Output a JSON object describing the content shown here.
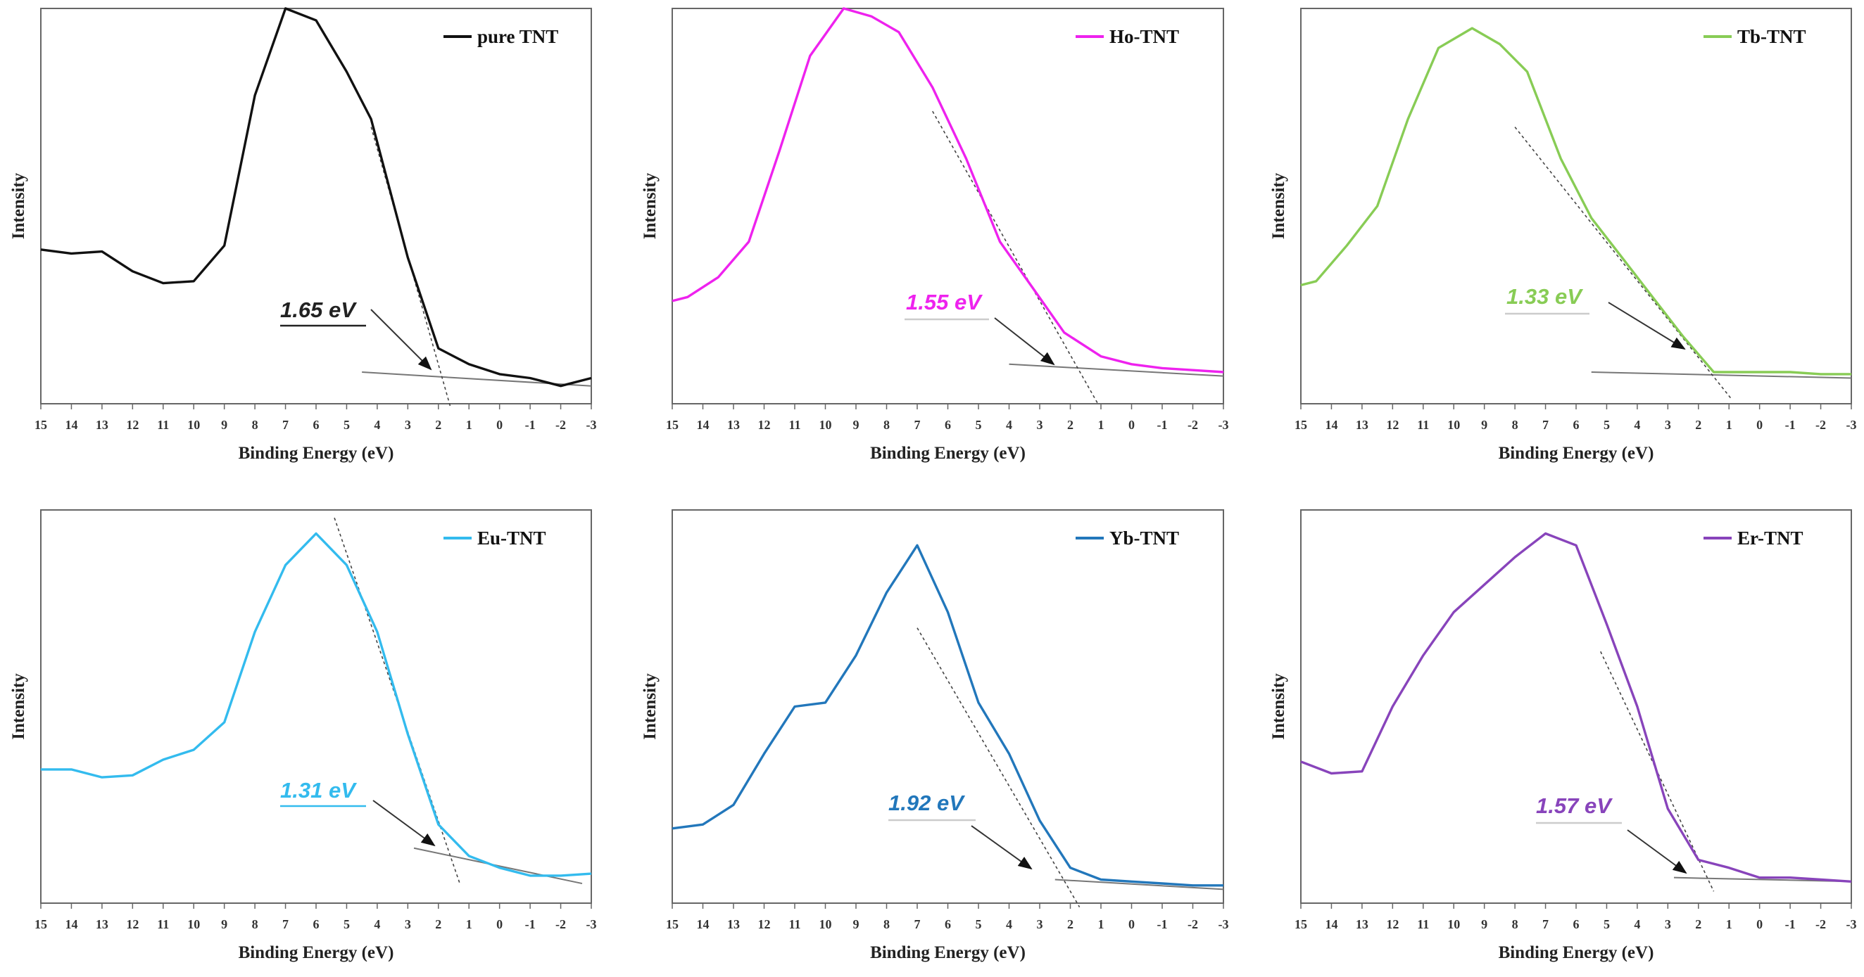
{
  "figure": {
    "x_ticks": [
      "15",
      "14",
      "13",
      "12",
      "11",
      "10",
      "9",
      "8",
      "7",
      "6",
      "5",
      "4",
      "3",
      "2",
      "1",
      "0",
      "-1",
      "-2",
      "-3"
    ],
    "xlabel": "Binding Energy (eV)",
    "ylabel": "Intensity"
  },
  "chart_data": [
    {
      "type": "line",
      "xlim": [
        15,
        -3
      ],
      "ylim": [
        0,
        100
      ],
      "xlabel": "Binding Energy (eV)",
      "ylabel": "Intensity",
      "legend": "top-right",
      "series": [
        {
          "name": "pure TNT",
          "color": "#111111",
          "x": [
            15,
            14,
            13,
            12,
            11,
            10,
            9,
            8,
            7,
            6,
            5,
            4.2,
            3,
            2,
            1,
            0,
            -1,
            -2,
            -3
          ],
          "y": [
            39,
            38,
            38.5,
            33.5,
            30.5,
            31,
            40,
            78,
            100,
            97,
            84,
            72,
            37,
            14,
            10,
            7.5,
            6.5,
            4.5,
            6.5
          ]
        }
      ],
      "tangent": {
        "x": [
          4.2,
          1.6
        ],
        "y": [
          70,
          -1
        ]
      },
      "baseline": {
        "x": [
          4.5,
          -3
        ],
        "y": [
          8,
          4.5
        ]
      },
      "annotation": {
        "text": "1.65 eV",
        "color": "#222222",
        "underline": "#222222"
      }
    },
    {
      "type": "line",
      "xlim": [
        15,
        -3
      ],
      "ylim": [
        0,
        100
      ],
      "xlabel": "Binding Energy (eV)",
      "ylabel": "Intensity",
      "legend": "top-right",
      "series": [
        {
          "name": "Ho-TNT",
          "color": "#ee22ee",
          "x": [
            15,
            14.5,
            13.5,
            12.5,
            11.5,
            10.5,
            9.4,
            8.5,
            7.6,
            6.5,
            5.4,
            4.3,
            3.2,
            2.2,
            1,
            0,
            -1,
            -2,
            -3
          ],
          "y": [
            26,
            27,
            32,
            41,
            64,
            88,
            100,
            98,
            94,
            80,
            62,
            41,
            29,
            18,
            12,
            10,
            9,
            8.5,
            8
          ]
        }
      ],
      "tangent": {
        "x": [
          6.5,
          1.1
        ],
        "y": [
          74,
          0
        ]
      },
      "baseline": {
        "x": [
          4,
          -3
        ],
        "y": [
          10,
          7
        ]
      },
      "annotation": {
        "text": "1.55 eV",
        "color": "#ee22ee",
        "underline": "#cccccc"
      }
    },
    {
      "type": "line",
      "xlim": [
        15,
        -3
      ],
      "ylim": [
        0,
        100
      ],
      "xlabel": "Binding Energy (eV)",
      "ylabel": "Intensity",
      "legend": "top-right",
      "series": [
        {
          "name": "Tb-TNT",
          "color": "#88cc55",
          "x": [
            15,
            14.5,
            13.5,
            12.5,
            11.5,
            10.5,
            9.4,
            8.5,
            7.6,
            6.5,
            5.5,
            4.5,
            3.5,
            2.5,
            1.5,
            0,
            -1,
            -2,
            -3
          ],
          "y": [
            30,
            31,
            40,
            50,
            72,
            90,
            95,
            91,
            84,
            62,
            47,
            37,
            27,
            17,
            8,
            8,
            8,
            7.5,
            7.5
          ]
        }
      ],
      "tangent": {
        "x": [
          8,
          0.9
        ],
        "y": [
          70,
          1
        ]
      },
      "baseline": {
        "x": [
          5.5,
          -3
        ],
        "y": [
          8,
          6.5
        ]
      },
      "annotation": {
        "text": "1.33 eV",
        "color": "#88cc55",
        "underline": "#cccccc"
      }
    },
    {
      "type": "line",
      "xlim": [
        15,
        -3
      ],
      "ylim": [
        0,
        100
      ],
      "xlabel": "Binding Energy (eV)",
      "ylabel": "Intensity",
      "legend": "top-right",
      "series": [
        {
          "name": "Eu-TNT",
          "color": "#33bbee",
          "x": [
            15,
            14,
            13,
            12,
            11,
            10,
            9,
            8,
            7,
            6,
            5,
            4,
            3,
            2,
            1,
            0,
            -1,
            -2,
            -3
          ],
          "y": [
            34,
            34,
            32,
            32.5,
            36.5,
            39,
            46,
            69,
            86,
            94,
            86,
            69,
            43,
            20,
            12,
            9,
            7,
            7,
            7.5
          ]
        }
      ],
      "tangent": {
        "x": [
          5.4,
          1.3
        ],
        "y": [
          98,
          5
        ]
      },
      "baseline": {
        "x": [
          2.8,
          -2.7
        ],
        "y": [
          14,
          5
        ]
      },
      "annotation": {
        "text": "1.31 eV",
        "color": "#33bbee",
        "underline": "#33bbee"
      }
    },
    {
      "type": "line",
      "xlim": [
        15,
        -3
      ],
      "ylim": [
        0,
        100
      ],
      "xlabel": "Binding Energy (eV)",
      "ylabel": "Intensity",
      "legend": "top-right",
      "series": [
        {
          "name": "Yb-TNT",
          "color": "#2277bb",
          "x": [
            15,
            14,
            13,
            12,
            11,
            10,
            9,
            8,
            7,
            6,
            5,
            4,
            3,
            2,
            1,
            0,
            -1,
            -2,
            -3
          ],
          "y": [
            19,
            20,
            25,
            38,
            50,
            51,
            63,
            79,
            91,
            74,
            51,
            38,
            21,
            9,
            6,
            5.5,
            5,
            4.5,
            4.5
          ]
        }
      ],
      "tangent": {
        "x": [
          7,
          1.7
        ],
        "y": [
          70,
          -1
        ]
      },
      "baseline": {
        "x": [
          2.5,
          -3
        ],
        "y": [
          6,
          3.5
        ]
      },
      "annotation": {
        "text": "1.92 eV",
        "color": "#2277bb",
        "underline": "#cccccc"
      }
    },
    {
      "type": "line",
      "xlim": [
        15,
        -3
      ],
      "ylim": [
        0,
        100
      ],
      "xlabel": "Binding Energy (eV)",
      "ylabel": "Intensity",
      "legend": "top-right",
      "series": [
        {
          "name": "Er-TNT",
          "color": "#8844bb",
          "x": [
            15,
            14,
            13,
            12,
            11,
            10,
            9,
            8,
            7,
            6,
            5,
            4,
            3,
            2,
            1,
            0,
            -1,
            -2,
            -3
          ],
          "y": [
            36,
            33,
            33.5,
            50,
            63,
            74,
            81,
            88,
            94,
            91,
            71,
            50,
            24,
            11,
            9,
            6.5,
            6.5,
            6,
            5.5
          ]
        }
      ],
      "tangent": {
        "x": [
          5.2,
          1.5
        ],
        "y": [
          64,
          3
        ]
      },
      "baseline": {
        "x": [
          2.8,
          -3
        ],
        "y": [
          6.5,
          5.5
        ]
      },
      "annotation": {
        "text": "1.57 eV",
        "color": "#8844bb",
        "underline": "#cccccc"
      }
    }
  ]
}
